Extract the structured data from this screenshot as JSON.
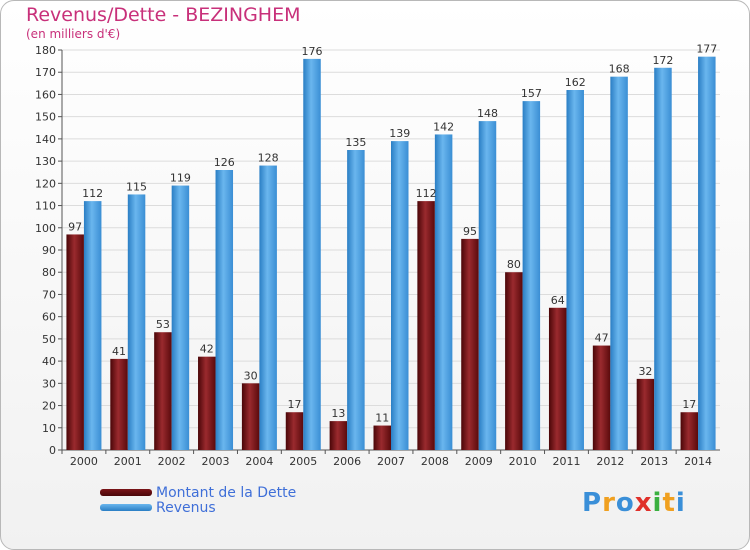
{
  "title": "Revenus/Dette - BEZINGHEM",
  "subtitle": "(en milliers d'€)",
  "logo": {
    "text": "Proxiti",
    "letters": [
      "P",
      "r",
      "o",
      "x",
      "i",
      "t",
      "i"
    ],
    "colors": [
      "#3a8fd8",
      "#f0a020",
      "#3a8fd8",
      "#e0302a",
      "#3ab040",
      "#f0a020",
      "#3a8fd8"
    ]
  },
  "chart_data": {
    "type": "bar",
    "title": "Revenus/Dette - BEZINGHEM",
    "categories": [
      "2000",
      "2001",
      "2002",
      "2003",
      "2004",
      "2005",
      "2006",
      "2007",
      "2008",
      "2009",
      "2010",
      "2011",
      "2012",
      "2013",
      "2014"
    ],
    "series": [
      {
        "name": "Montant de la Dette",
        "color": "#7a1418",
        "values": [
          97,
          41,
          53,
          42,
          30,
          17,
          13,
          11,
          112,
          95,
          80,
          64,
          47,
          32,
          17
        ]
      },
      {
        "name": "Revenus",
        "color": "#4aa0e0",
        "values": [
          112,
          115,
          119,
          126,
          128,
          176,
          135,
          139,
          142,
          148,
          157,
          162,
          168,
          172,
          177
        ]
      }
    ],
    "ylim": [
      0,
      180
    ],
    "yticks": [
      0,
      10,
      20,
      30,
      40,
      50,
      60,
      70,
      80,
      90,
      100,
      110,
      120,
      130,
      140,
      150,
      160,
      170,
      180
    ],
    "grid": true,
    "legend": "bottom-left"
  }
}
